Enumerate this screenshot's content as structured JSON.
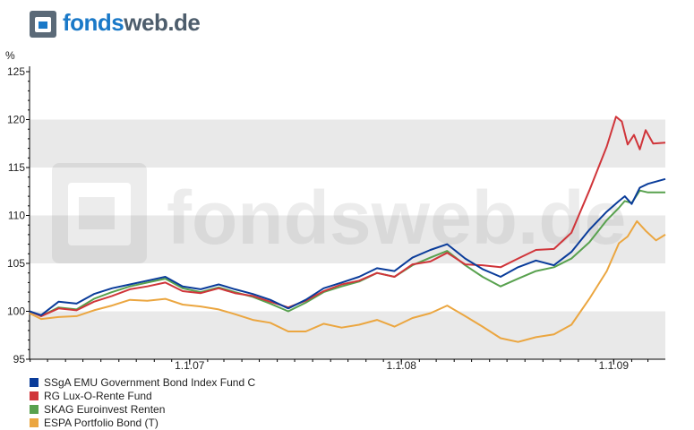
{
  "logo": {
    "part1": "fonds",
    "part2": "web.de"
  },
  "chart_data": {
    "type": "line",
    "title": "",
    "xlabel": "",
    "ylabel": "%",
    "ylim": [
      95,
      125
    ],
    "yticks": [
      95,
      100,
      105,
      110,
      115,
      120,
      125
    ],
    "xlim": [
      "2006-03-31",
      "2009-03-31"
    ],
    "xticks": [
      {
        "date": "2007-01-01",
        "label": "1.1.07"
      },
      {
        "date": "2008-01-01",
        "label": "1.1.08"
      },
      {
        "date": "2009-01-01",
        "label": "1.1.09"
      }
    ],
    "grid": "horizontal bands",
    "legend_position": "bottom",
    "watermark": "fondsweb.de",
    "series": [
      {
        "name": "SSgA EMU Government Bond Index Fund C",
        "color": "#0a3c9a",
        "points": [
          [
            "2006-03-31",
            100
          ],
          [
            "2006-04-20",
            99.6
          ],
          [
            "2006-05-20",
            101
          ],
          [
            "2006-06-20",
            100.8
          ],
          [
            "2006-07-20",
            101.8
          ],
          [
            "2006-08-20",
            102.4
          ],
          [
            "2006-09-20",
            102.8
          ],
          [
            "2006-10-20",
            103.2
          ],
          [
            "2006-11-20",
            103.6
          ],
          [
            "2006-12-20",
            102.6
          ],
          [
            "2007-01-20",
            102.3
          ],
          [
            "2007-02-20",
            102.8
          ],
          [
            "2007-03-20",
            102.3
          ],
          [
            "2007-04-20",
            101.8
          ],
          [
            "2007-05-20",
            101.2
          ],
          [
            "2007-06-20",
            100.3
          ],
          [
            "2007-07-20",
            101.2
          ],
          [
            "2007-08-20",
            102.4
          ],
          [
            "2007-09-20",
            103
          ],
          [
            "2007-10-20",
            103.6
          ],
          [
            "2007-11-20",
            104.5
          ],
          [
            "2007-12-20",
            104.2
          ],
          [
            "2008-01-20",
            105.6
          ],
          [
            "2008-02-20",
            106.4
          ],
          [
            "2008-03-20",
            107
          ],
          [
            "2008-04-20",
            105.5
          ],
          [
            "2008-05-20",
            104.4
          ],
          [
            "2008-06-20",
            103.6
          ],
          [
            "2008-07-20",
            104.6
          ],
          [
            "2008-08-20",
            105.3
          ],
          [
            "2008-09-20",
            104.8
          ],
          [
            "2008-10-20",
            106.2
          ],
          [
            "2008-11-20",
            108.5
          ],
          [
            "2008-12-20",
            110.4
          ],
          [
            "2009-01-10",
            111.5
          ],
          [
            "2009-01-20",
            112
          ],
          [
            "2009-02-01",
            111.2
          ],
          [
            "2009-02-15",
            112.9
          ],
          [
            "2009-03-01",
            113.3
          ],
          [
            "2009-03-31",
            113.8
          ]
        ]
      },
      {
        "name": "RG Lux-O-Rente Fund",
        "color": "#d0353a",
        "points": [
          [
            "2006-03-31",
            100
          ],
          [
            "2006-04-20",
            99.5
          ],
          [
            "2006-05-20",
            100.3
          ],
          [
            "2006-06-20",
            100.1
          ],
          [
            "2006-07-20",
            101
          ],
          [
            "2006-08-20",
            101.6
          ],
          [
            "2006-09-20",
            102.3
          ],
          [
            "2006-10-20",
            102.6
          ],
          [
            "2006-11-20",
            103
          ],
          [
            "2006-12-20",
            102.1
          ],
          [
            "2007-01-20",
            101.9
          ],
          [
            "2007-02-20",
            102.4
          ],
          [
            "2007-03-20",
            101.9
          ],
          [
            "2007-04-20",
            101.6
          ],
          [
            "2007-05-20",
            101
          ],
          [
            "2007-06-20",
            100.4
          ],
          [
            "2007-07-20",
            101.1
          ],
          [
            "2007-08-20",
            102.1
          ],
          [
            "2007-09-20",
            102.8
          ],
          [
            "2007-10-20",
            103.2
          ],
          [
            "2007-11-20",
            104
          ],
          [
            "2007-12-20",
            103.6
          ],
          [
            "2008-01-20",
            104.9
          ],
          [
            "2008-02-20",
            105.2
          ],
          [
            "2008-03-20",
            106.1
          ],
          [
            "2008-04-20",
            104.9
          ],
          [
            "2008-05-20",
            104.8
          ],
          [
            "2008-06-20",
            104.6
          ],
          [
            "2008-07-20",
            105.5
          ],
          [
            "2008-08-20",
            106.4
          ],
          [
            "2008-09-20",
            106.5
          ],
          [
            "2008-10-20",
            108.2
          ],
          [
            "2008-11-20",
            112.6
          ],
          [
            "2008-12-20",
            117.2
          ],
          [
            "2009-01-05",
            120.3
          ],
          [
            "2009-01-15",
            119.8
          ],
          [
            "2009-01-25",
            117.4
          ],
          [
            "2009-02-05",
            118.4
          ],
          [
            "2009-02-15",
            116.9
          ],
          [
            "2009-02-25",
            118.9
          ],
          [
            "2009-03-10",
            117.5
          ],
          [
            "2009-03-31",
            117.6
          ]
        ]
      },
      {
        "name": "SKAG Euroinvest Renten",
        "color": "#58a14e",
        "points": [
          [
            "2006-03-31",
            100
          ],
          [
            "2006-04-20",
            99.5
          ],
          [
            "2006-05-20",
            100.4
          ],
          [
            "2006-06-20",
            100.2
          ],
          [
            "2006-07-20",
            101.3
          ],
          [
            "2006-08-20",
            102
          ],
          [
            "2006-09-20",
            102.6
          ],
          [
            "2006-10-20",
            103
          ],
          [
            "2006-11-20",
            103.4
          ],
          [
            "2006-12-20",
            102.4
          ],
          [
            "2007-01-20",
            102
          ],
          [
            "2007-02-20",
            102.5
          ],
          [
            "2007-03-20",
            102
          ],
          [
            "2007-04-20",
            101.5
          ],
          [
            "2007-05-20",
            100.8
          ],
          [
            "2007-06-20",
            100
          ],
          [
            "2007-07-20",
            100.9
          ],
          [
            "2007-08-20",
            102
          ],
          [
            "2007-09-20",
            102.6
          ],
          [
            "2007-10-20",
            103.1
          ],
          [
            "2007-11-20",
            104
          ],
          [
            "2007-12-20",
            103.6
          ],
          [
            "2008-01-20",
            104.8
          ],
          [
            "2008-02-20",
            105.6
          ],
          [
            "2008-03-20",
            106.3
          ],
          [
            "2008-04-20",
            104.8
          ],
          [
            "2008-05-20",
            103.6
          ],
          [
            "2008-06-20",
            102.6
          ],
          [
            "2008-07-20",
            103.4
          ],
          [
            "2008-08-20",
            104.2
          ],
          [
            "2008-09-20",
            104.6
          ],
          [
            "2008-10-20",
            105.5
          ],
          [
            "2008-11-20",
            107.2
          ],
          [
            "2008-12-20",
            109.5
          ],
          [
            "2009-01-10",
            110.8
          ],
          [
            "2009-01-20",
            111.5
          ],
          [
            "2009-02-01",
            111.3
          ],
          [
            "2009-02-15",
            112.6
          ],
          [
            "2009-03-01",
            112.4
          ],
          [
            "2009-03-31",
            112.4
          ]
        ]
      },
      {
        "name": "ESPA Portfolio Bond (T)",
        "color": "#eba640",
        "points": [
          [
            "2006-03-31",
            99.8
          ],
          [
            "2006-04-20",
            99.2
          ],
          [
            "2006-05-20",
            99.4
          ],
          [
            "2006-06-20",
            99.5
          ],
          [
            "2006-07-20",
            100.1
          ],
          [
            "2006-08-20",
            100.6
          ],
          [
            "2006-09-20",
            101.2
          ],
          [
            "2006-10-20",
            101.1
          ],
          [
            "2006-11-20",
            101.3
          ],
          [
            "2006-12-20",
            100.7
          ],
          [
            "2007-01-20",
            100.5
          ],
          [
            "2007-02-20",
            100.2
          ],
          [
            "2007-03-20",
            99.7
          ],
          [
            "2007-04-20",
            99.1
          ],
          [
            "2007-05-20",
            98.8
          ],
          [
            "2007-06-20",
            97.9
          ],
          [
            "2007-07-20",
            97.9
          ],
          [
            "2007-08-20",
            98.7
          ],
          [
            "2007-09-20",
            98.3
          ],
          [
            "2007-10-20",
            98.6
          ],
          [
            "2007-11-20",
            99.1
          ],
          [
            "2007-12-20",
            98.4
          ],
          [
            "2008-01-20",
            99.3
          ],
          [
            "2008-02-20",
            99.8
          ],
          [
            "2008-03-20",
            100.6
          ],
          [
            "2008-04-20",
            99.5
          ],
          [
            "2008-05-20",
            98.4
          ],
          [
            "2008-06-20",
            97.2
          ],
          [
            "2008-07-20",
            96.8
          ],
          [
            "2008-08-20",
            97.3
          ],
          [
            "2008-09-20",
            97.6
          ],
          [
            "2008-10-20",
            98.6
          ],
          [
            "2008-11-20",
            101.3
          ],
          [
            "2008-12-20",
            104.2
          ],
          [
            "2009-01-10",
            107.1
          ],
          [
            "2009-01-25",
            107.8
          ],
          [
            "2009-02-10",
            109.4
          ],
          [
            "2009-02-25",
            108.4
          ],
          [
            "2009-03-15",
            107.4
          ],
          [
            "2009-03-31",
            108
          ]
        ]
      }
    ]
  }
}
